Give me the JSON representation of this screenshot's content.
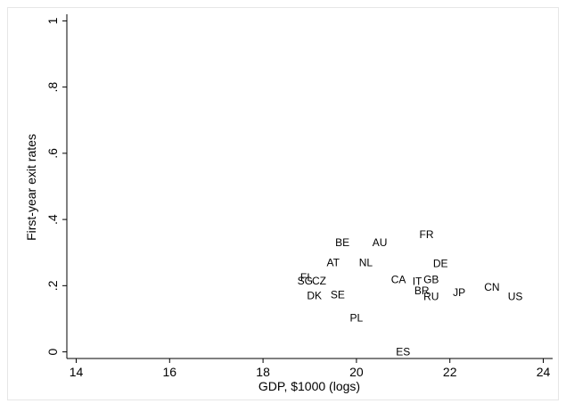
{
  "chart_data": {
    "type": "scatter",
    "marker": "country-code-labels",
    "title": "",
    "xlabel": "GDP, $1000 (logs)",
    "ylabel": "First-year exit rates",
    "xlim": [
      13.8,
      24.2
    ],
    "ylim": [
      -0.02,
      1.02
    ],
    "x_ticks": [
      14,
      16,
      18,
      20,
      22,
      24
    ],
    "x_tick_labels": [
      "14",
      "16",
      "18",
      "20",
      "22",
      "24"
    ],
    "y_ticks": [
      0,
      0.2,
      0.4,
      0.6,
      0.8,
      1
    ],
    "y_tick_labels": [
      "0",
      ".2",
      ".4",
      ".6",
      ".8",
      "1"
    ],
    "grid": false,
    "legend": "none",
    "points": [
      {
        "label": "FR",
        "x": 21.5,
        "y": 0.355
      },
      {
        "label": "BE",
        "x": 19.7,
        "y": 0.33
      },
      {
        "label": "AU",
        "x": 20.5,
        "y": 0.33
      },
      {
        "label": "AT",
        "x": 19.5,
        "y": 0.27
      },
      {
        "label": "NL",
        "x": 20.2,
        "y": 0.27
      },
      {
        "label": "DE",
        "x": 21.8,
        "y": 0.267
      },
      {
        "label": "FI",
        "x": 18.9,
        "y": 0.225
      },
      {
        "label": "SG",
        "x": 18.9,
        "y": 0.215
      },
      {
        "label": "CZ",
        "x": 19.2,
        "y": 0.215
      },
      {
        "label": "CA",
        "x": 20.9,
        "y": 0.218
      },
      {
        "label": "IT",
        "x": 21.3,
        "y": 0.213
      },
      {
        "label": "GB",
        "x": 21.6,
        "y": 0.218
      },
      {
        "label": "BR",
        "x": 21.4,
        "y": 0.185
      },
      {
        "label": "CN",
        "x": 22.9,
        "y": 0.195
      },
      {
        "label": "DK",
        "x": 19.1,
        "y": 0.17
      },
      {
        "label": "SE",
        "x": 19.6,
        "y": 0.172
      },
      {
        "label": "JP",
        "x": 22.2,
        "y": 0.18
      },
      {
        "label": "RU",
        "x": 21.6,
        "y": 0.167
      },
      {
        "label": "US",
        "x": 23.4,
        "y": 0.167
      },
      {
        "label": "PL",
        "x": 20.0,
        "y": 0.102
      },
      {
        "label": "ES",
        "x": 21.0,
        "y": 0.0
      }
    ],
    "colors": {
      "marks": "#000000",
      "plot_background": "#ffffff",
      "outer_background": "#ffffff"
    }
  }
}
